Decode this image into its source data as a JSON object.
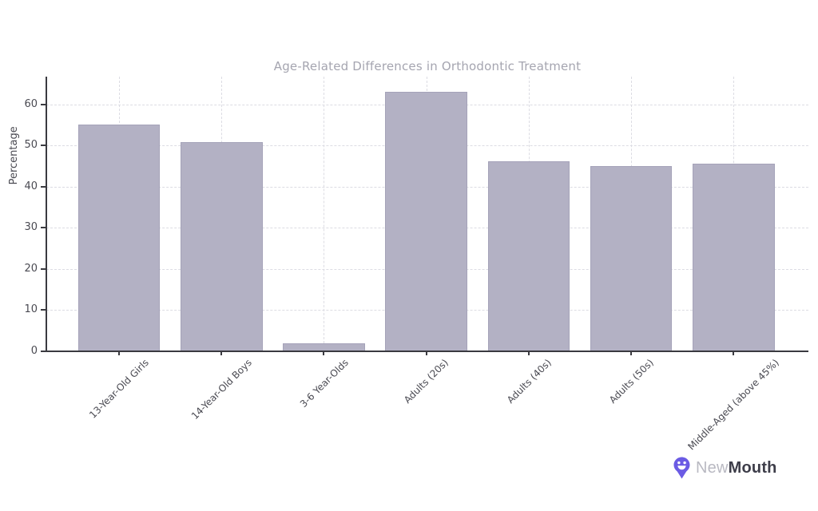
{
  "chart_data": {
    "type": "bar",
    "title": "Age-Related Differences in Orthodontic Treatment",
    "ylabel": "Percentage",
    "xlabel": "",
    "categories": [
      "13-Year-Old Girls",
      "14-Year-Old Boys",
      "3-6 Year-Olds",
      "Adults (20s)",
      "Adults (40s)",
      "Adults (50s)",
      "Middle-Aged (above 45%)"
    ],
    "values": [
      55,
      50.8,
      2,
      63,
      46.2,
      45,
      45.5
    ],
    "yticks": [
      0,
      10,
      20,
      30,
      40,
      50,
      60
    ],
    "ylim": [
      0,
      66.7
    ],
    "grid": true,
    "grid_style": "dashed",
    "legend": false,
    "xtick_rotation_deg": 45,
    "colors": {
      "bar_fill": "#b3b1c4",
      "bar_edge": "#a5a3b9",
      "grid": "#dcdce3",
      "axis": "#3a3a40",
      "tick_label": "#4a4a52",
      "title": "#a5a5b0",
      "axis_label": "#4a4a52",
      "background": "#ffffff"
    }
  },
  "logo": {
    "brand": "NewMouth",
    "prefix": "New",
    "suffix": "Mouth",
    "icon": "newmouth-pin-smile-icon",
    "icon_color": "#6b5be4",
    "prefix_color": "#b9b9c2",
    "suffix_color": "#3d3d49"
  }
}
